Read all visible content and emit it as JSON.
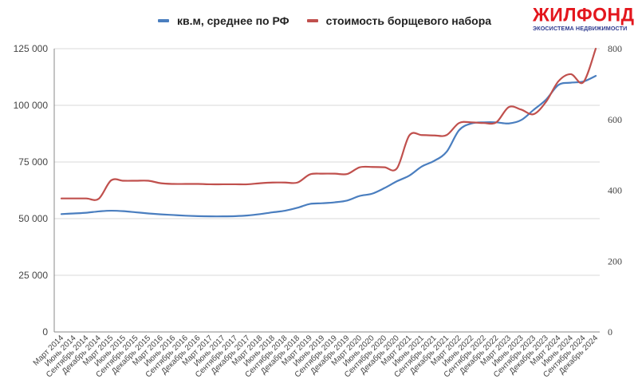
{
  "legend": {
    "series1_label": "кв.м, среднее по РФ",
    "series2_label": "стоимость борщевого набора"
  },
  "logo": {
    "title": "ЖИЛФОНД",
    "subtitle": "ЭКОСИСТЕМА НЕДВИЖИМОСТИ"
  },
  "colors": {
    "blue": "#4a7ebf",
    "red": "#c0504d",
    "grid": "#d9d9d9",
    "axis": "#888888",
    "logo_red": "#e3161d",
    "logo_blue": "#2f3b8f"
  },
  "chart_data": {
    "type": "line",
    "title": "",
    "xlabel": "",
    "ylabel": "",
    "ylabel_right": "",
    "legend_position": "top",
    "grid": true,
    "ylim": [
      0,
      125000
    ],
    "ylim_right": [
      0,
      800
    ],
    "y_ticks": [
      "0",
      "25 000",
      "50 000",
      "75 000",
      "100 000",
      "125 000"
    ],
    "y_ticks_right": [
      "0",
      "200",
      "400",
      "600",
      "800"
    ],
    "categories": [
      "Март 2014",
      "Июнь 2014",
      "Сентябрь 2014",
      "Декабрь 2014",
      "Март 2015",
      "Июнь 2015",
      "Сентябрь 2015",
      "Декабрь 2015",
      "Март 2016",
      "Июнь 2016",
      "Сентябрь 2016",
      "Декабрь 2016",
      "Март 2017",
      "Июнь 2017",
      "Сентябрь 2017",
      "Декабрь 2017",
      "Март 2018",
      "Июнь 2018",
      "Сентябрь 2018",
      "Декабрь 2018",
      "Март 2019",
      "Июнь 2019",
      "Сентябрь 2019",
      "Декабрь 2019",
      "Март 2020",
      "Июнь 2020",
      "Сентябрь 2020",
      "Декабрь 2020",
      "Март 2021",
      "Июнь 2021",
      "Сентябрь 2021",
      "Декабрь 2021",
      "Март 2022",
      "Июнь 2022",
      "Сентябрь 2022",
      "Декабрь 2022",
      "Март 2023",
      "Июнь 2023",
      "Сентябрь 2023",
      "Декабрь 2023",
      "Март 2024",
      "Июнь 2024",
      "Сентябрь 2024",
      "Декабрь 2024"
    ],
    "series": [
      {
        "name": "кв.м, среднее по РФ",
        "axis": "left",
        "color": "#4a7ebf",
        "values": [
          52000,
          52300,
          52600,
          53200,
          53500,
          53300,
          52800,
          52300,
          51900,
          51600,
          51300,
          51100,
          51000,
          51000,
          51100,
          51400,
          52000,
          52800,
          53500,
          54800,
          56500,
          56800,
          57200,
          58000,
          60000,
          61000,
          63500,
          66500,
          69000,
          73000,
          75500,
          79500,
          89000,
          92000,
          92500,
          92500,
          92000,
          93500,
          98000,
          102500,
          109000,
          110000,
          110500,
          113000
        ]
      },
      {
        "name": "стоимость борщевого набора",
        "axis": "right",
        "color": "#c0504d",
        "values": [
          377,
          377,
          377,
          376,
          428,
          427,
          427,
          427,
          420,
          418,
          418,
          418,
          417,
          417,
          417,
          417,
          420,
          422,
          422,
          422,
          445,
          447,
          447,
          446,
          465,
          466,
          465,
          462,
          555,
          556,
          555,
          556,
          590,
          592,
          590,
          592,
          635,
          628,
          615,
          650,
          708,
          728,
          705,
          800
        ]
      }
    ]
  }
}
